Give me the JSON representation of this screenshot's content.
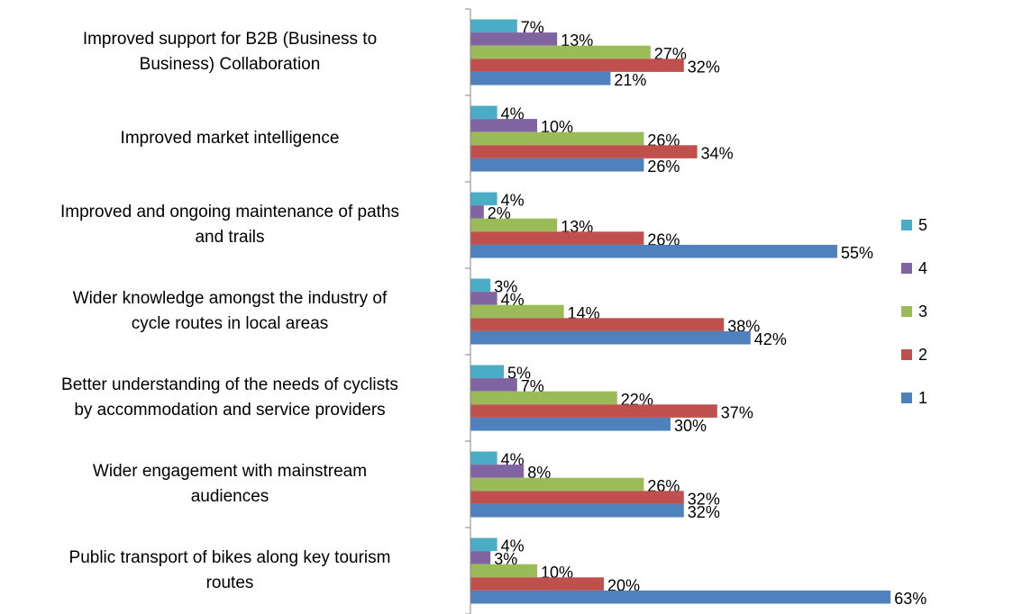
{
  "chart_data": {
    "type": "hbar",
    "categories": [
      "Improved support for B2B (Business to\nBusiness) Collaboration",
      "Improved market intelligence",
      "Improved and ongoing maintenance of paths\nand trails",
      "Wider knowledge amongst the industry of\ncycle routes in local areas",
      "Better understanding of the needs of cyclists\nby accommodation and service providers",
      "Wider engagement with mainstream\naudiences",
      "Public transport of bikes along key tourism\nroutes"
    ],
    "series": [
      {
        "name": "5",
        "color": "#4bacc6",
        "values": [
          7,
          4,
          4,
          3,
          5,
          4,
          4
        ],
        "value_labels": [
          "7%",
          "4%",
          "4%",
          "3%",
          "5%",
          "4%",
          "4%"
        ]
      },
      {
        "name": "4",
        "color": "#8064a2",
        "values": [
          13,
          10,
          2,
          4,
          7,
          8,
          3
        ],
        "value_labels": [
          "13%",
          "10%",
          "2%",
          "4%",
          "7%",
          "8%",
          "3%"
        ]
      },
      {
        "name": "3",
        "color": "#9bbb59",
        "values": [
          27,
          26,
          13,
          14,
          22,
          26,
          10
        ],
        "value_labels": [
          "27%",
          "26%",
          "13%",
          "14%",
          "22%",
          "26%",
          "10%"
        ]
      },
      {
        "name": "2",
        "color": "#c0504d",
        "values": [
          32,
          34,
          26,
          38,
          37,
          32,
          20
        ],
        "value_labels": [
          "32%",
          "34%",
          "26%",
          "38%",
          "37%",
          "32%",
          "20%"
        ]
      },
      {
        "name": "1",
        "color": "#4f81bd",
        "values": [
          21,
          26,
          55,
          42,
          30,
          32,
          63
        ],
        "value_labels": [
          "21%",
          "26%",
          "55%",
          "42%",
          "30%",
          "32%",
          "63%"
        ]
      }
    ],
    "xlim": [
      0,
      70
    ],
    "legend": "right"
  }
}
